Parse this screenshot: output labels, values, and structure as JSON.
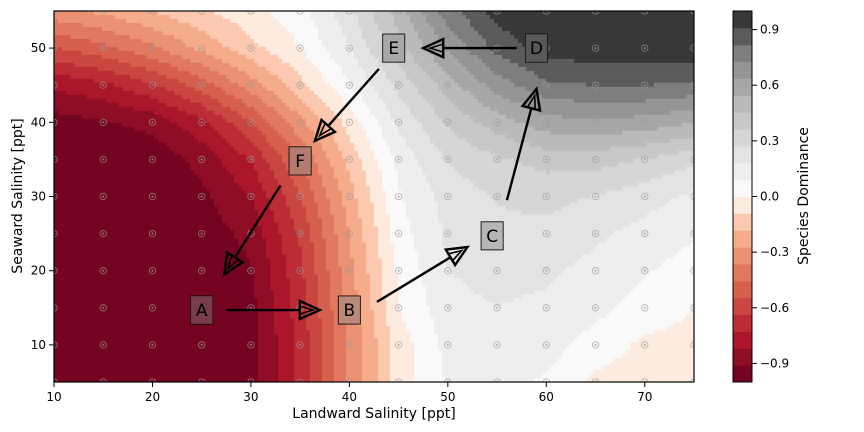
{
  "chart_data": {
    "type": "heatmap",
    "title": "",
    "xlabel": "Landward Salinity [ppt]",
    "ylabel": "Seaward Salinity [ppt]",
    "colorbar_label": "Species Dominance",
    "xlim": [
      10,
      75
    ],
    "ylim": [
      5,
      55
    ],
    "xticks": [
      10,
      20,
      30,
      40,
      50,
      60,
      70
    ],
    "yticks": [
      10,
      20,
      30,
      40,
      50
    ],
    "colorbar_range": [
      -1.0,
      1.0
    ],
    "colorbar_ticks": [
      -0.9,
      -0.6,
      -0.3,
      0.0,
      0.3,
      0.6,
      0.9
    ],
    "colorbar_tick_labels": [
      "−0.9",
      "−0.6",
      "−0.3",
      "0.0",
      "0.3",
      "0.6",
      "0.9"
    ],
    "colormap": "RdGy",
    "grid_x": [
      10,
      15,
      20,
      25,
      30,
      35,
      40,
      45,
      50,
      55,
      60,
      65,
      70,
      75
    ],
    "grid_y": [
      5,
      10,
      15,
      20,
      25,
      30,
      35,
      40,
      45,
      50,
      55
    ],
    "z": [
      [
        -0.99,
        -0.99,
        -0.99,
        -0.98,
        -0.95,
        -0.7,
        -0.35,
        -0.05,
        0.1,
        0.12,
        0.08,
        -0.02,
        -0.05,
        -0.05
      ],
      [
        -0.99,
        -0.99,
        -0.99,
        -0.98,
        -0.95,
        -0.7,
        -0.35,
        -0.05,
        0.12,
        0.15,
        0.13,
        0.05,
        -0.02,
        -0.03
      ],
      [
        -0.99,
        -0.99,
        -0.99,
        -0.98,
        -0.94,
        -0.68,
        -0.33,
        0.0,
        0.15,
        0.18,
        0.16,
        0.12,
        0.05,
        0.0
      ],
      [
        -0.99,
        -0.99,
        -0.99,
        -0.97,
        -0.92,
        -0.66,
        -0.3,
        0.02,
        0.18,
        0.22,
        0.2,
        0.15,
        0.1,
        0.05
      ],
      [
        -0.99,
        -0.99,
        -0.98,
        -0.96,
        -0.88,
        -0.62,
        -0.27,
        0.05,
        0.2,
        0.25,
        0.25,
        0.2,
        0.15,
        0.1
      ],
      [
        -0.99,
        -0.99,
        -0.98,
        -0.93,
        -0.82,
        -0.55,
        -0.22,
        0.08,
        0.22,
        0.28,
        0.3,
        0.27,
        0.22,
        0.16
      ],
      [
        -0.99,
        -0.98,
        -0.97,
        -0.88,
        -0.72,
        -0.45,
        -0.15,
        0.12,
        0.28,
        0.35,
        0.4,
        0.4,
        0.36,
        0.3
      ],
      [
        -0.95,
        -0.92,
        -0.88,
        -0.75,
        -0.55,
        -0.3,
        -0.05,
        0.2,
        0.38,
        0.5,
        0.6,
        0.62,
        0.6,
        0.55
      ],
      [
        -0.8,
        -0.75,
        -0.65,
        -0.5,
        -0.32,
        -0.12,
        0.08,
        0.3,
        0.5,
        0.68,
        0.8,
        0.82,
        0.82,
        0.8
      ],
      [
        -0.55,
        -0.48,
        -0.38,
        -0.25,
        -0.12,
        0.0,
        0.18,
        0.42,
        0.65,
        0.85,
        0.95,
        0.97,
        0.97,
        0.97
      ],
      [
        -0.3,
        -0.25,
        -0.18,
        -0.1,
        -0.03,
        0.06,
        0.25,
        0.5,
        0.78,
        0.95,
        0.99,
        0.99,
        0.99,
        0.99
      ]
    ],
    "annotations": [
      {
        "label": "A",
        "x": 25,
        "y": 14.7
      },
      {
        "label": "B",
        "x": 40,
        "y": 14.7
      },
      {
        "label": "C",
        "x": 54.5,
        "y": 24.7
      },
      {
        "label": "D",
        "x": 59,
        "y": 50
      },
      {
        "label": "E",
        "x": 44.5,
        "y": 50
      },
      {
        "label": "F",
        "x": 35,
        "y": 34.8
      }
    ],
    "arrows": [
      {
        "from": [
          27.5,
          14.7
        ],
        "to": [
          37,
          14.7
        ]
      },
      {
        "from": [
          42.8,
          15.8
        ],
        "to": [
          52,
          23.2
        ]
      },
      {
        "from": [
          56,
          29.5
        ],
        "to": [
          59,
          44.5
        ]
      },
      {
        "from": [
          57,
          50
        ],
        "to": [
          47.5,
          50
        ]
      },
      {
        "from": [
          43,
          47.2
        ],
        "to": [
          36.5,
          37.5
        ]
      },
      {
        "from": [
          33,
          31.5
        ],
        "to": [
          27.3,
          19.5
        ]
      }
    ]
  }
}
